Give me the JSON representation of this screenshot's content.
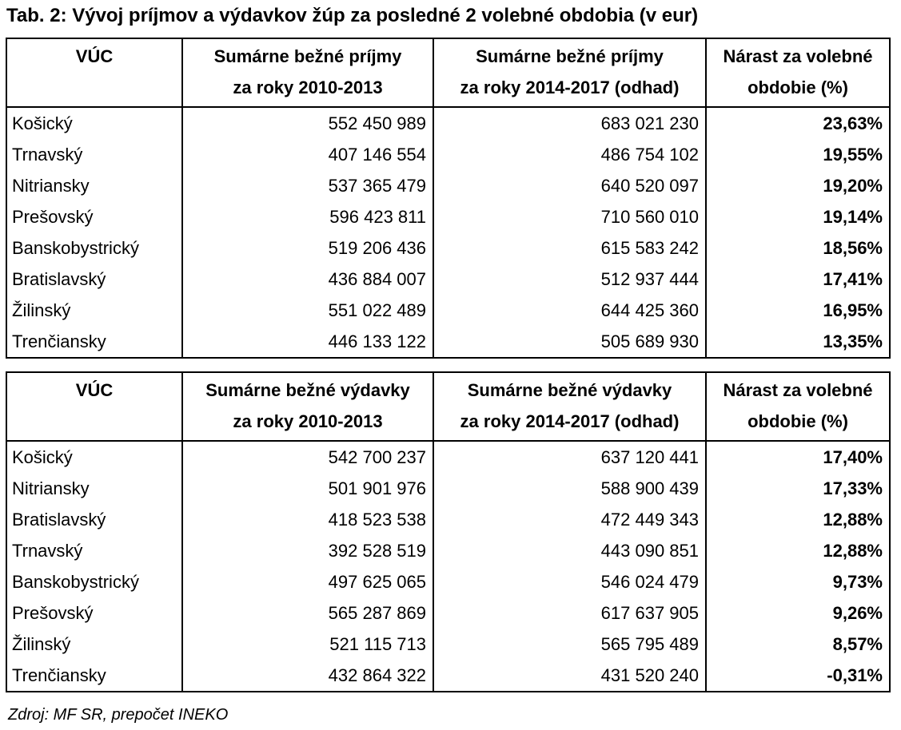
{
  "page": {
    "title": "Tab. 2: Vývoj príjmov a výdavkov žúp za posledné 2 volebné obdobia (v eur)",
    "source_note": "Zdroj: MF SR, prepočet INEKO"
  },
  "colors": {
    "text": "#000000",
    "background": "#ffffff",
    "border": "#000000"
  },
  "tables": [
    {
      "name": "bezne-prijmy",
      "headers": [
        {
          "line1": "VÚC",
          "line2": ""
        },
        {
          "line1": "Sumárne bežné príjmy",
          "line2": "za roky 2010-2013"
        },
        {
          "line1": "Sumárne bežné príjmy",
          "line2": "za roky 2014-2017 (odhad)"
        },
        {
          "line1": "Nárast za volebné",
          "line2": "obdobie (%)"
        }
      ],
      "rows": [
        {
          "region": "Košický",
          "v1": "552 450 989",
          "v2": "683 021 230",
          "pct": "23,63%"
        },
        {
          "region": "Trnavský",
          "v1": "407 146 554",
          "v2": "486 754 102",
          "pct": "19,55%"
        },
        {
          "region": "Nitriansky",
          "v1": "537 365 479",
          "v2": "640 520 097",
          "pct": "19,20%"
        },
        {
          "region": "Prešovský",
          "v1": "596 423 811",
          "v2": "710 560 010",
          "pct": "19,14%"
        },
        {
          "region": "Banskobystrický",
          "v1": "519 206 436",
          "v2": "615 583 242",
          "pct": "18,56%"
        },
        {
          "region": "Bratislavský",
          "v1": "436 884 007",
          "v2": "512 937 444",
          "pct": "17,41%"
        },
        {
          "region": "Žilinský",
          "v1": "551 022 489",
          "v2": "644 425 360",
          "pct": "16,95%"
        },
        {
          "region": "Trenčiansky",
          "v1": "446 133 122",
          "v2": "505 689 930",
          "pct": "13,35%"
        }
      ]
    },
    {
      "name": "bezne-vydavky",
      "headers": [
        {
          "line1": "VÚC",
          "line2": ""
        },
        {
          "line1": "Sumárne bežné výdavky",
          "line2": "za roky 2010-2013"
        },
        {
          "line1": "Sumárne bežné výdavky",
          "line2": "za roky 2014-2017 (odhad)"
        },
        {
          "line1": "Nárast za volebné",
          "line2": "obdobie (%)"
        }
      ],
      "rows": [
        {
          "region": "Košický",
          "v1": "542 700 237",
          "v2": "637 120 441",
          "pct": "17,40%"
        },
        {
          "region": "Nitriansky",
          "v1": "501 901 976",
          "v2": "588 900 439",
          "pct": "17,33%"
        },
        {
          "region": "Bratislavský",
          "v1": "418 523 538",
          "v2": "472 449 343",
          "pct": "12,88%"
        },
        {
          "region": "Trnavský",
          "v1": "392 528 519",
          "v2": "443 090 851",
          "pct": "12,88%"
        },
        {
          "region": "Banskobystrický",
          "v1": "497 625 065",
          "v2": "546 024 479",
          "pct": "9,73%"
        },
        {
          "region": "Prešovský",
          "v1": "565 287 869",
          "v2": "617 637 905",
          "pct": "9,26%"
        },
        {
          "region": "Žilinský",
          "v1": "521 115 713",
          "v2": "565 795 489",
          "pct": "8,57%"
        },
        {
          "region": "Trenčiansky",
          "v1": "432 864 322",
          "v2": "431 520 240",
          "pct": "-0,31%"
        }
      ]
    }
  ]
}
